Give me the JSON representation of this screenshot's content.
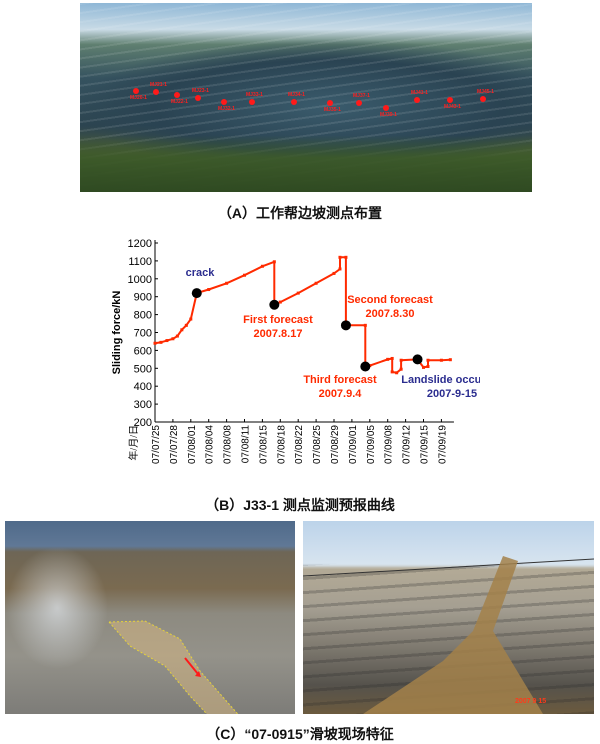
{
  "panel_a": {
    "caption": "（A）工作帮边坡测点布置",
    "stake_color": "#ff1a1a",
    "stakes": [
      "MJ20-1",
      "MJ21-1",
      "MJ22-1",
      "MJ23-1",
      "MJ32-1",
      "MJ33-1",
      "MJ34-1",
      "MJ35-1",
      "MJ37-1",
      "MJ39-1",
      "MJ41-1",
      "MJ43-1",
      "MJ45-1"
    ]
  },
  "panel_b": {
    "caption": "（B）J33-1 测点监测预报曲线"
  },
  "panel_c": {
    "caption": "（C）“07-0915”滑坡现场特征",
    "date_stamp": "2007  9  15"
  },
  "chart_data": {
    "type": "line",
    "title": "",
    "ylabel": "Sliding force/kN",
    "xlabel": "年/月/日",
    "ylim": [
      200,
      1200
    ],
    "yticks": [
      200,
      300,
      400,
      500,
      600,
      700,
      800,
      900,
      1000,
      1100,
      1200
    ],
    "xticks": [
      "07/07/25",
      "07/07/28",
      "07/08/01",
      "07/08/04",
      "07/08/08",
      "07/08/11",
      "07/08/15",
      "07/08/18",
      "07/08/22",
      "07/08/25",
      "07/08/29",
      "07/09/01",
      "07/09/05",
      "07/09/08",
      "07/09/12",
      "07/09/15",
      "07/09/19"
    ],
    "grid": false,
    "series_color": "#ff2a00",
    "series": [
      {
        "x": [
          "07/07/25",
          "07/07/26",
          "07/07/27",
          "07/07/28",
          "07/07/29",
          "07/07/30",
          "07/07/31",
          "07/08/01",
          "07/08/02",
          "07/08/04",
          "07/08/08",
          "07/08/11",
          "07/08/15",
          "07/08/17",
          "07/08/17",
          "07/08/18",
          "07/08/22",
          "07/08/25",
          "07/08/29",
          "07/08/30",
          "07/08/30",
          "07/08/31",
          "07/08/31",
          "07/09/04",
          "07/09/04",
          "07/09/05",
          "07/09/08",
          "07/09/09",
          "07/09/09",
          "07/09/10",
          "07/09/11",
          "07/09/11",
          "07/09/14",
          "07/09/15",
          "07/09/16",
          "07/09/16",
          "07/09/19",
          "07/09/21"
        ],
        "y": [
          640,
          645,
          655,
          665,
          680,
          715,
          740,
          775,
          920,
          940,
          975,
          1020,
          1070,
          1095,
          855,
          870,
          920,
          975,
          1030,
          1055,
          1120,
          1120,
          740,
          740,
          510,
          515,
          550,
          555,
          480,
          475,
          495,
          545,
          550,
          505,
          510,
          545,
          545,
          548
        ]
      }
    ],
    "markers": [
      {
        "x": "07/08/02",
        "y": 920
      },
      {
        "x": "07/08/17",
        "y": 855
      },
      {
        "x": "07/08/31",
        "y": 740
      },
      {
        "x": "07/09/04",
        "y": 510
      },
      {
        "x": "07/09/14",
        "y": 550
      }
    ],
    "annotations": [
      {
        "lines": [
          "crack"
        ],
        "color": "#2b2d8f"
      },
      {
        "lines": [
          "First forecast",
          "2007.8.17"
        ],
        "color": "#ff2a00"
      },
      {
        "lines": [
          "Second forecast",
          "2007.8.30"
        ],
        "color": "#ff2a00"
      },
      {
        "lines": [
          "Third forecast",
          "2007.9.4"
        ],
        "color": "#ff2a00"
      },
      {
        "lines": [
          "Landslide occurred",
          "2007-9-15"
        ],
        "color": "#2b2d8f"
      }
    ]
  }
}
